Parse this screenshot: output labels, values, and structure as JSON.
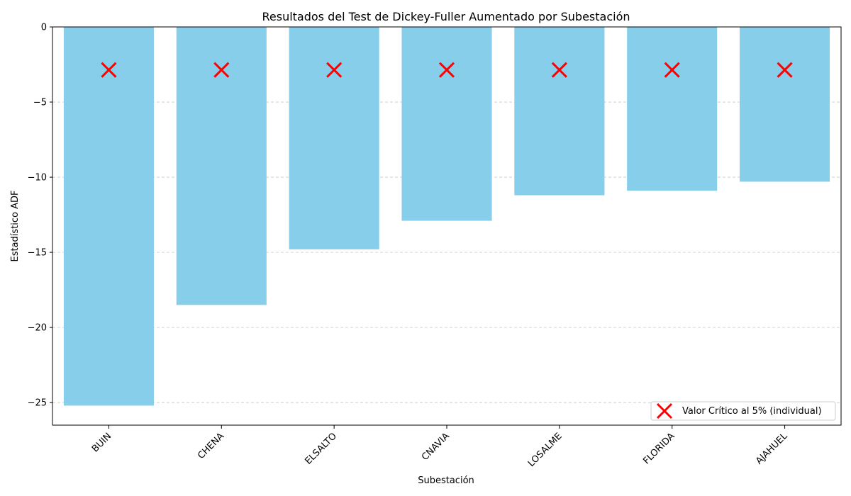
{
  "chart_data": {
    "type": "bar",
    "title": "Resultados del Test de Dickey-Fuller Aumentado por Subestación",
    "xlabel": "Subestación",
    "ylabel": "Estadístico ADF",
    "categories": [
      "BUIN",
      "CHENA",
      "ELSALTO",
      "CNAVIA",
      "LOSALME",
      "FLORIDA",
      "AJAHUEL"
    ],
    "series": [
      {
        "values": [
          -25.2,
          -18.5,
          -14.8,
          -12.9,
          -11.2,
          -10.9,
          -10.3
        ],
        "color": "#87ceeb"
      },
      {
        "name": "Valor Crítico al 5% (individual)",
        "type": "scatter",
        "marker": "x",
        "values": [
          -2.86,
          -2.86,
          -2.86,
          -2.86,
          -2.86,
          -2.86,
          -2.86
        ],
        "color": "#ff0000"
      }
    ],
    "ylim": [
      -26.5,
      0
    ],
    "yticks": [
      0,
      -5,
      -10,
      -15,
      -20,
      -25
    ],
    "ytick_labels": [
      "0",
      "−5",
      "−10",
      "−15",
      "−20",
      "−25"
    ],
    "grid": "y-dashed",
    "legend": "lower-right"
  }
}
